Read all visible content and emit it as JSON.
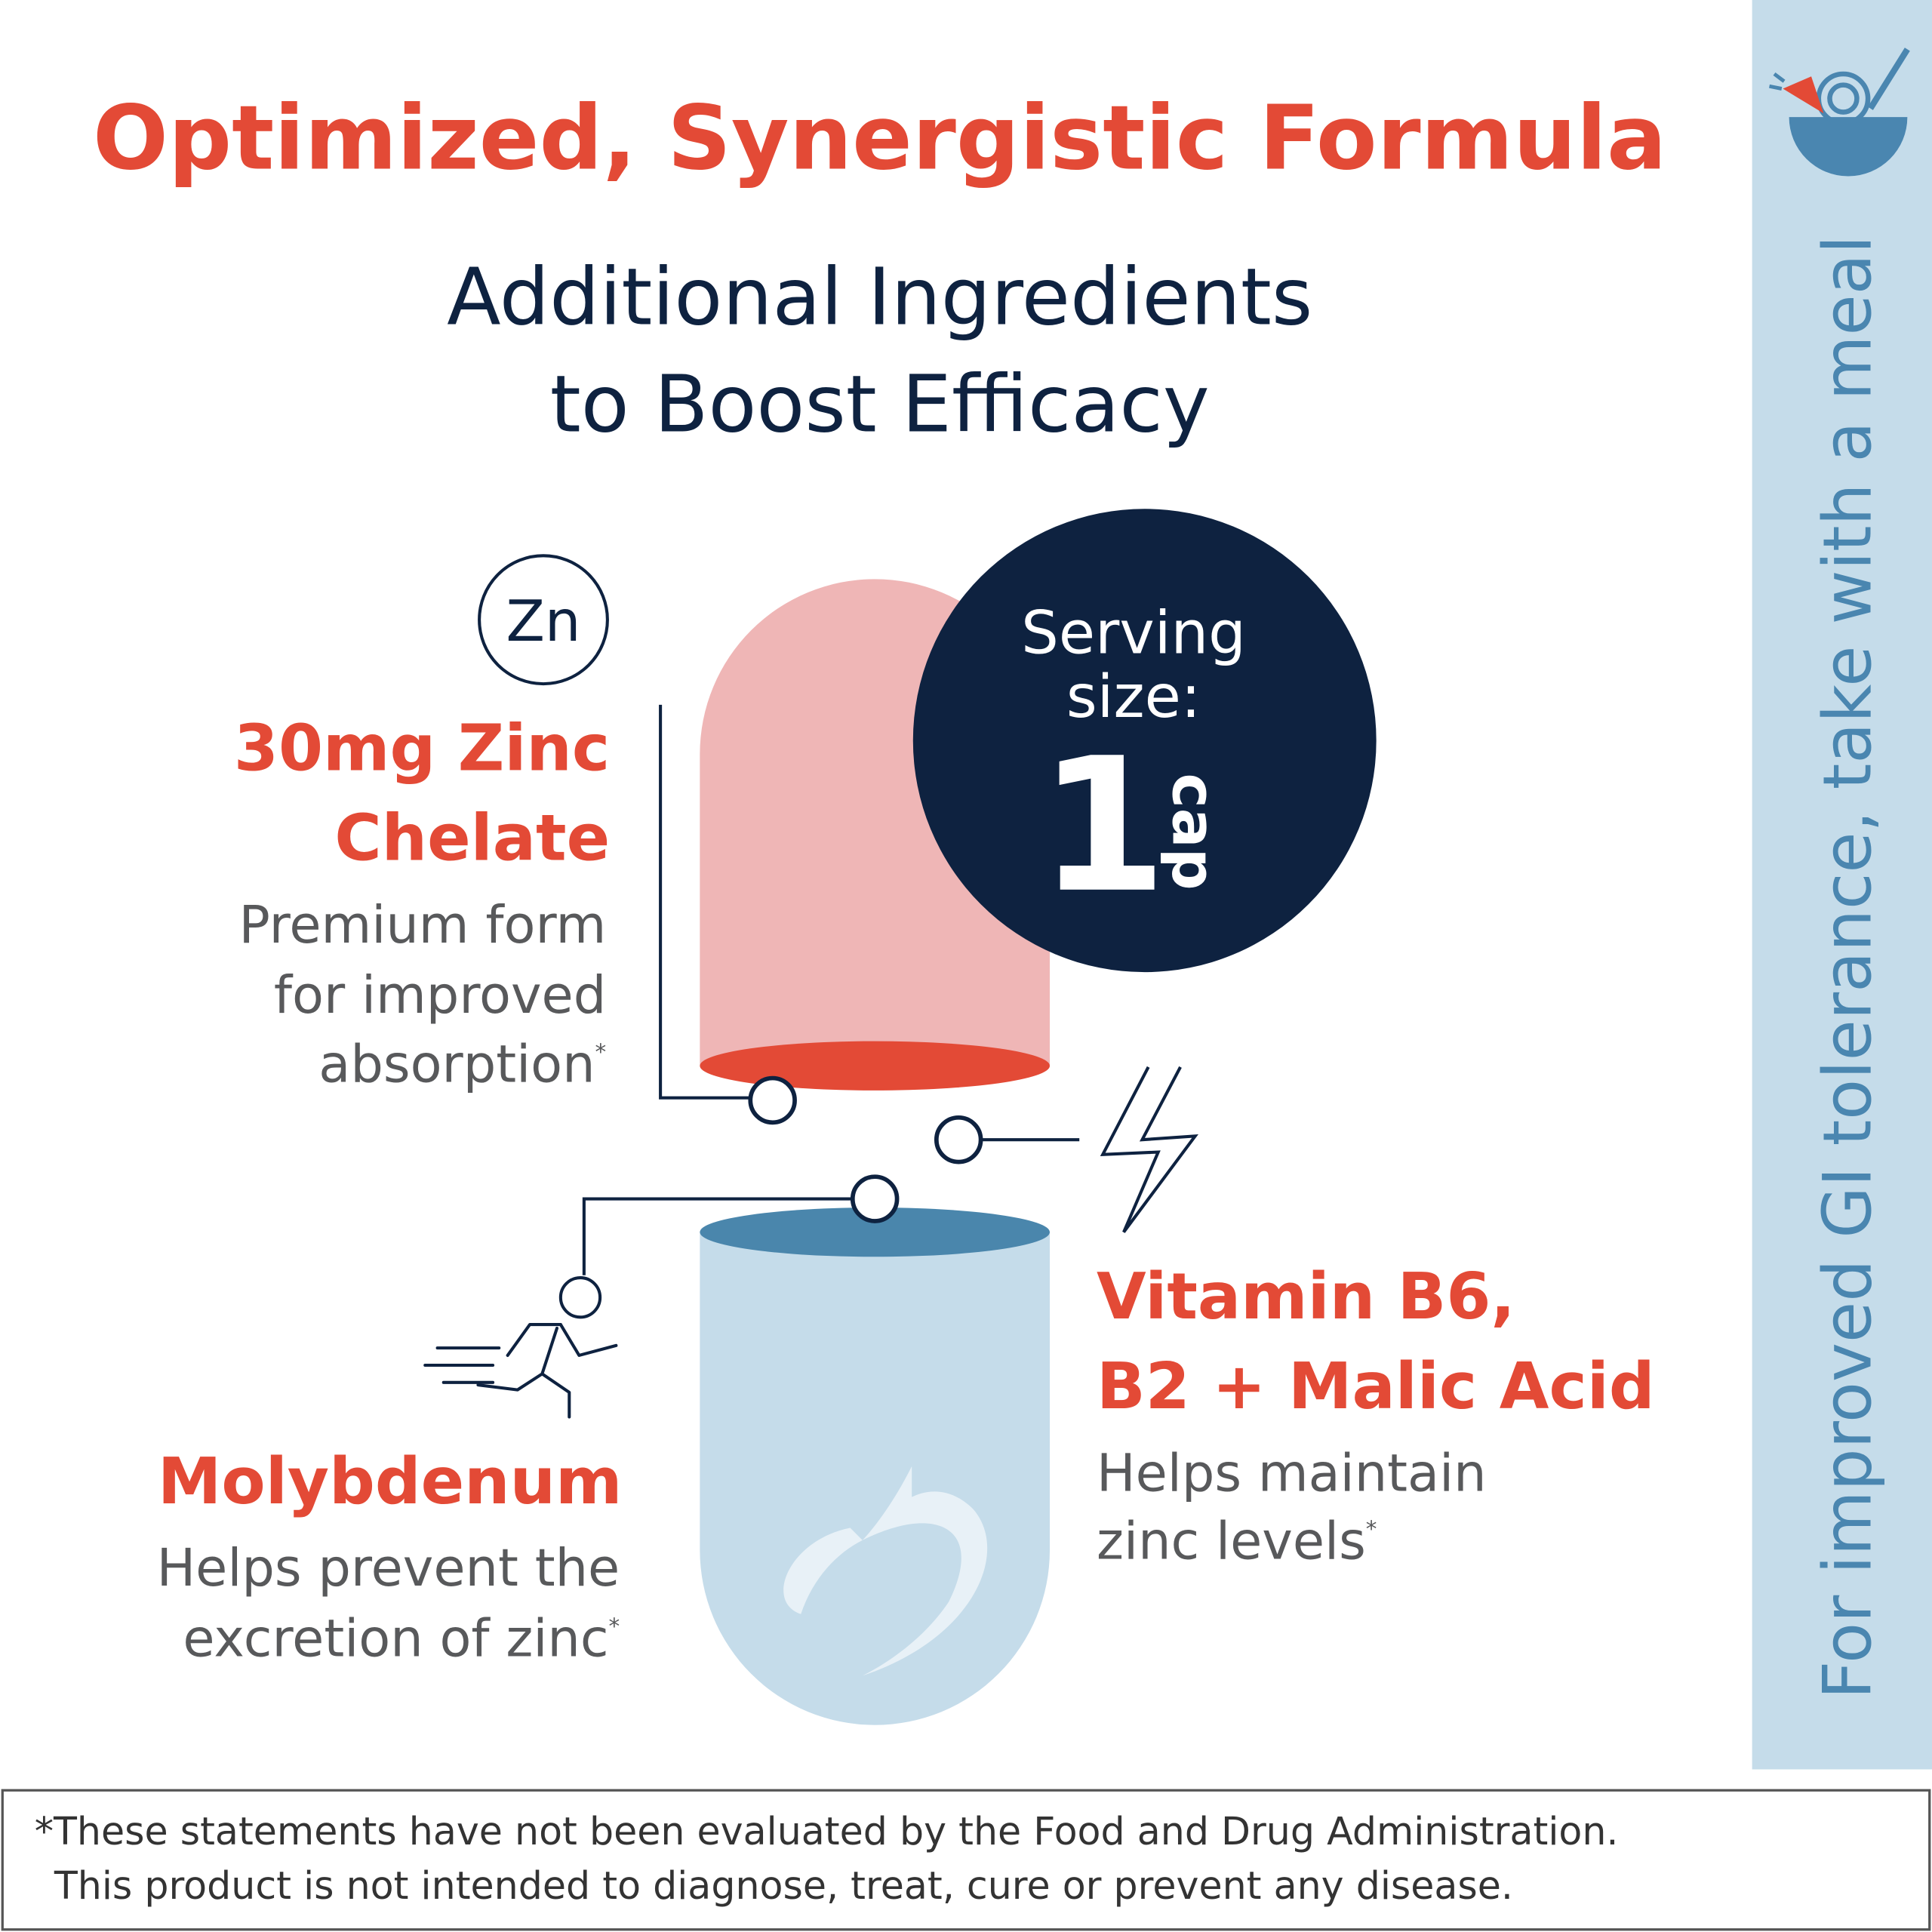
{
  "header": {
    "title": "Optimized, Synergistic Formula",
    "subtitle": [
      "Additional Ingredients",
      "to Boost Efficacy"
    ]
  },
  "side_note": "For improved GI tolerance, take with a meal",
  "serving": {
    "label": [
      "Serving",
      "size:"
    ],
    "amount": "1",
    "unit": "cap"
  },
  "zinc_symbol": "Zn",
  "ingredients": [
    {
      "name": [
        "30mg Zinc",
        "Chelate"
      ],
      "description": [
        "Premium form",
        "for improved",
        "absorption"
      ],
      "note_mark": "*"
    },
    {
      "name": [
        "Molybdenum"
      ],
      "description": [
        "Helps prevent the",
        "excretion of zinc"
      ],
      "note_mark": "*"
    },
    {
      "name": [
        "Vitamin B6,",
        "B2 + Malic Acid"
      ],
      "description": [
        "Helps maintain",
        "zinc levels"
      ],
      "note_mark": "*"
    }
  ],
  "footer": [
    "*These statements have not been evaluated by the Food and Drug Administration.",
    "This product is not intended to diagnose, treat, cure or prevent any disease."
  ]
}
